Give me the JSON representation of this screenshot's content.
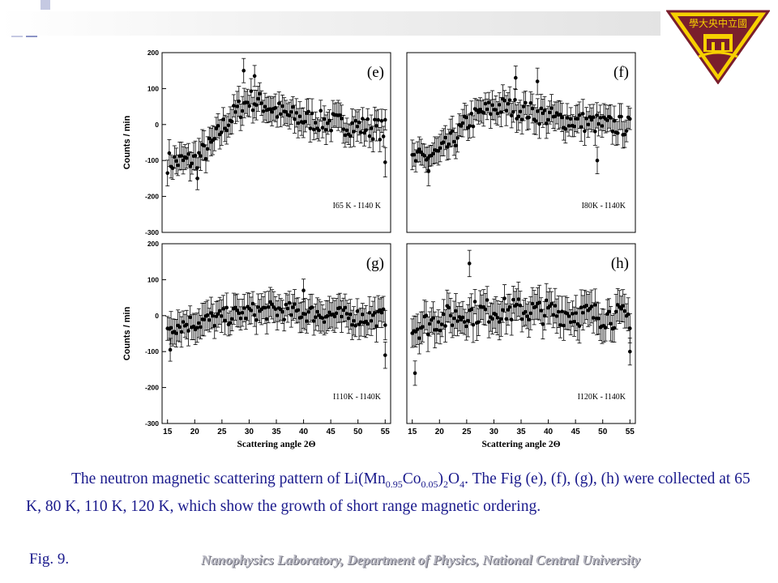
{
  "slide": {
    "caption_lead": "The neutron magnetic scattering pattern of Li(Mn",
    "formula_sub1": "0.95",
    "formula_mid": "Co",
    "formula_sub2": "0.05",
    "formula_close": ")",
    "formula_sub3": "2",
    "formula_o": "O",
    "formula_sub4": "4",
    "caption_tail": ". The Fig (e), (f), (g), (h) were collected at 65 K, 80 K, 110 K, 120 K, which show the growth of short range magnetic ordering.",
    "fig_label": "Fig. 9.",
    "lab_name": "Nanophysics Laboratory, Department of Physics, National Central University",
    "logo_text": "學大央中立國",
    "colors": {
      "text": "#1a1a8c",
      "deco_dark": "#1f2370",
      "deco_light": "#8c93c6",
      "logo_yellow": "#f6d000",
      "logo_maroon": "#7a1e2c"
    }
  },
  "chart_data": [
    {
      "type": "scatter",
      "panel": "(e)",
      "ylabel": "Counts / min",
      "xlabel": "",
      "legend": "I65 K - I140 K",
      "xlim": [
        14,
        56
      ],
      "ylim": [
        -300,
        200
      ],
      "yticks": [
        -300,
        -200,
        -100,
        0,
        100,
        200
      ],
      "xticks": [],
      "trend": [
        [
          15,
          -105
        ],
        [
          20,
          -100
        ],
        [
          23,
          -60
        ],
        [
          25,
          -10
        ],
        [
          28,
          40
        ],
        [
          30,
          70
        ],
        [
          33,
          55
        ],
        [
          36,
          30
        ],
        [
          40,
          15
        ],
        [
          45,
          5
        ],
        [
          50,
          -5
        ],
        [
          55,
          -15
        ]
      ],
      "outliers": [
        [
          29,
          150
        ],
        [
          31,
          135
        ],
        [
          20.5,
          -150
        ],
        [
          55,
          -105
        ]
      ],
      "noise": 30,
      "err": 35
    },
    {
      "type": "scatter",
      "panel": "(f)",
      "ylabel": "",
      "xlabel": "",
      "legend": "I80K - I140K",
      "xlim": [
        14,
        56
      ],
      "ylim": [
        -300,
        200
      ],
      "yticks": [],
      "xticks": [],
      "trend": [
        [
          15,
          -100
        ],
        [
          20,
          -80
        ],
        [
          23,
          -35
        ],
        [
          25,
          5
        ],
        [
          28,
          35
        ],
        [
          31,
          50
        ],
        [
          34,
          45
        ],
        [
          38,
          30
        ],
        [
          42,
          15
        ],
        [
          46,
          8
        ],
        [
          50,
          0
        ],
        [
          55,
          -5
        ]
      ],
      "outliers": [
        [
          34,
          130
        ],
        [
          38,
          120
        ],
        [
          18,
          -130
        ],
        [
          49,
          -100
        ]
      ],
      "noise": 28,
      "err": 35
    },
    {
      "type": "scatter",
      "panel": "(g)",
      "ylabel": "Counts / min",
      "xlabel": "Scattering angle 2Θ",
      "legend": "I110K - I140K",
      "xlim": [
        14,
        56
      ],
      "ylim": [
        -300,
        200
      ],
      "yticks": [
        -300,
        -200,
        -100,
        0,
        100,
        200
      ],
      "xticks": [
        15,
        20,
        25,
        30,
        35,
        40,
        45,
        50,
        55
      ],
      "trend": [
        [
          15,
          -30
        ],
        [
          20,
          -20
        ],
        [
          25,
          -5
        ],
        [
          30,
          10
        ],
        [
          35,
          15
        ],
        [
          40,
          8
        ],
        [
          45,
          2
        ],
        [
          50,
          -5
        ],
        [
          55,
          -5
        ]
      ],
      "outliers": [
        [
          15.5,
          -95
        ],
        [
          55,
          -110
        ],
        [
          40,
          70
        ]
      ],
      "noise": 25,
      "err": 38
    },
    {
      "type": "scatter",
      "panel": "(h)",
      "ylabel": "",
      "xlabel": "Scattering angle 2Θ",
      "legend": "I120K - I140K",
      "xlim": [
        14,
        56
      ],
      "ylim": [
        -300,
        200
      ],
      "yticks": [],
      "xticks": [
        15,
        20,
        25,
        30,
        35,
        40,
        45,
        50,
        55
      ],
      "trend": [
        [
          15,
          -35
        ],
        [
          20,
          -10
        ],
        [
          25,
          5
        ],
        [
          30,
          15
        ],
        [
          35,
          15
        ],
        [
          40,
          10
        ],
        [
          45,
          5
        ],
        [
          50,
          0
        ],
        [
          55,
          -5
        ]
      ],
      "outliers": [
        [
          25.5,
          145
        ],
        [
          15.5,
          -160
        ],
        [
          55,
          -100
        ]
      ],
      "noise": 35,
      "err": 42
    }
  ]
}
